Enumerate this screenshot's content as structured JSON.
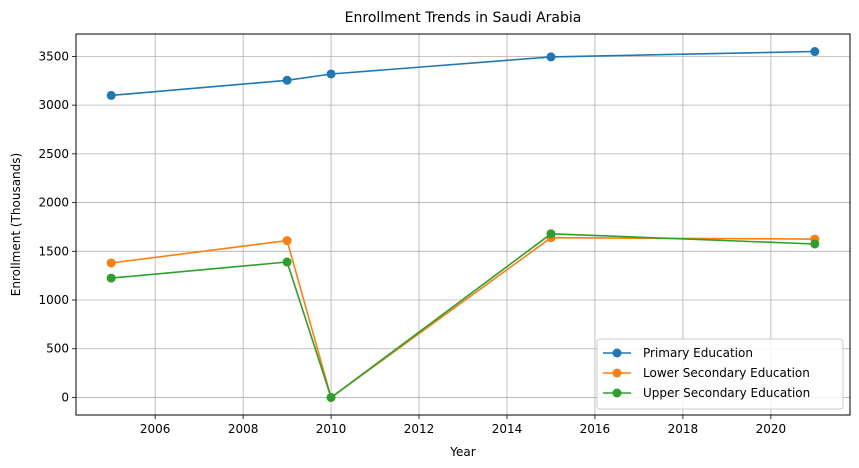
{
  "chart_data": {
    "type": "line",
    "title": "Enrollment Trends in Saudi Arabia",
    "xlabel": "Year",
    "ylabel": "Enrollment (Thousands)",
    "x": [
      2005,
      2009,
      2010,
      2015,
      2021
    ],
    "xlim": [
      2004.2,
      2021.8
    ],
    "ylim": [
      -180,
      3730
    ],
    "xticks": [
      2006,
      2008,
      2010,
      2012,
      2014,
      2016,
      2018,
      2020
    ],
    "yticks": [
      0,
      500,
      1000,
      1500,
      2000,
      2500,
      3000,
      3500
    ],
    "grid": true,
    "legend_position": "lower-right",
    "series": [
      {
        "name": "Primary Education",
        "color": "#1f77b4",
        "values": [
          3100,
          3255,
          3320,
          3495,
          3550
        ]
      },
      {
        "name": "Lower Secondary Education",
        "color": "#ff7f0e",
        "values": [
          1380,
          1610,
          0,
          1640,
          1625
        ]
      },
      {
        "name": "Upper Secondary Education",
        "color": "#2ca02c",
        "values": [
          1225,
          1390,
          0,
          1680,
          1575
        ]
      }
    ]
  }
}
